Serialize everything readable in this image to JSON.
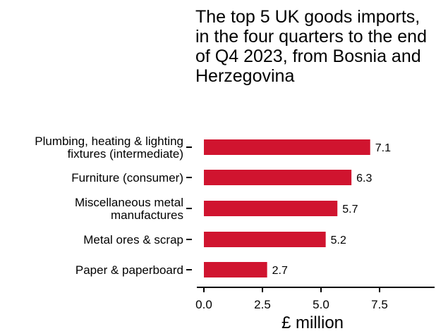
{
  "chart_data": {
    "type": "bar",
    "orientation": "horizontal",
    "title": "The top 5 UK goods imports, in the four quarters to the end of Q4 2023, from Bosnia and Herzegovina",
    "xlabel": "£ million",
    "ylabel": "",
    "categories": [
      [
        "Plumbing, heating & lighting",
        "fixtures (intermediate)"
      ],
      [
        "Furniture (consumer)"
      ],
      [
        "Miscellaneous metal",
        "manufactures"
      ],
      [
        "Metal ores & scrap"
      ],
      [
        "Paper & paperboard"
      ]
    ],
    "values": [
      7.1,
      6.3,
      5.7,
      5.2,
      2.7
    ],
    "value_labels": [
      "7.1",
      "6.3",
      "5.7",
      "5.2",
      "2.7"
    ],
    "xlim": [
      0,
      9.5
    ],
    "xticks": [
      0,
      2.5,
      5,
      7.5
    ],
    "xtick_labels": [
      "0.0",
      "2.5",
      "5.0",
      "7.5"
    ],
    "grid": false,
    "bar_color": "#d0142f",
    "axis_color": "#000000"
  }
}
